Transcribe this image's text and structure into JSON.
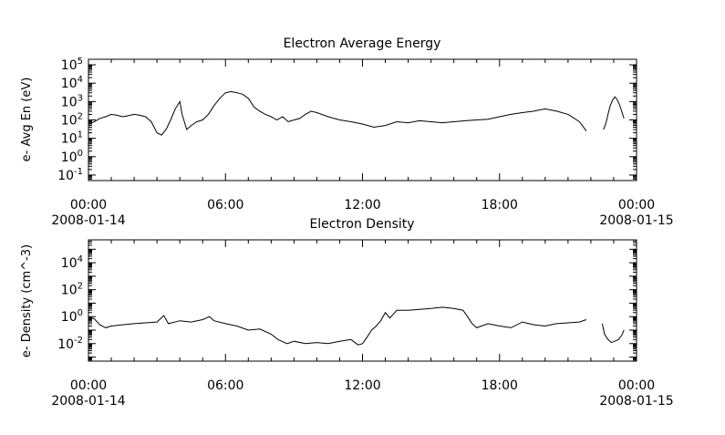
{
  "chart_data": [
    {
      "type": "line",
      "title": "Electron Average Energy",
      "ylabel": "e- Avg En (eV)",
      "yscale": "log",
      "ylim": [
        0.05,
        200000
      ],
      "xlim_hours": [
        0,
        24
      ],
      "y_ticks": [
        {
          "base": "10",
          "exp": "5",
          "value": 100000
        },
        {
          "base": "10",
          "exp": "4",
          "value": 10000
        },
        {
          "base": "10",
          "exp": "3",
          "value": 1000
        },
        {
          "base": "10",
          "exp": "2",
          "value": 100
        },
        {
          "base": "10",
          "exp": "1",
          "value": 10
        },
        {
          "base": "10",
          "exp": "0",
          "value": 1
        },
        {
          "base": "10",
          "exp": "-1",
          "value": 0.1
        }
      ],
      "x_ticks": [
        {
          "time": "00:00",
          "date": "2008-01-14"
        },
        {
          "time": "06:00",
          "date": ""
        },
        {
          "time": "12:00",
          "date": ""
        },
        {
          "time": "18:00",
          "date": ""
        },
        {
          "time": "00:00",
          "date": "2008-01-15"
        }
      ],
      "series": [
        {
          "x": [
            0,
            0.25,
            0.5,
            0.75,
            1.0,
            1.25,
            1.5,
            1.75,
            2.0,
            2.25,
            2.5,
            2.75,
            3.0,
            3.2,
            3.4,
            3.6,
            3.8,
            4.0,
            4.1,
            4.3,
            4.5,
            4.75,
            5.0,
            5.25,
            5.5,
            5.75,
            6.0,
            6.25,
            6.5,
            6.75,
            7.0,
            7.25,
            7.5,
            7.75,
            8.0,
            8.25,
            8.5,
            8.75,
            9.0,
            9.25,
            9.5,
            9.75,
            10.0,
            10.5,
            11.0,
            11.5,
            12.0,
            12.5,
            13.0,
            13.5,
            14.0,
            14.5,
            15.0,
            15.5,
            16.0,
            16.5,
            17.0,
            17.5,
            18.0,
            18.5,
            19.0,
            19.5,
            20.0,
            20.5,
            21.0,
            21.5,
            21.8
          ],
          "y": [
            60,
            80,
            120,
            150,
            200,
            180,
            150,
            170,
            200,
            180,
            150,
            80,
            20,
            15,
            30,
            100,
            400,
            1000,
            200,
            30,
            50,
            80,
            100,
            200,
            600,
            1500,
            3000,
            3500,
            3000,
            2500,
            1500,
            500,
            300,
            200,
            150,
            100,
            150,
            80,
            100,
            120,
            200,
            300,
            250,
            150,
            100,
            80,
            60,
            40,
            50,
            80,
            70,
            90,
            80,
            70,
            80,
            90,
            100,
            110,
            150,
            200,
            250,
            300,
            400,
            300,
            200,
            80,
            25
          ]
        },
        {
          "x": [
            22.55,
            22.65,
            22.75,
            22.85,
            22.95,
            23.05,
            23.15,
            23.25,
            23.35,
            23.45
          ],
          "y": [
            30,
            60,
            200,
            600,
            1200,
            1800,
            1300,
            700,
            300,
            120
          ]
        }
      ]
    },
    {
      "type": "line",
      "title": "Electron Density",
      "ylabel": "e- Density (cm^-3)",
      "yscale": "log",
      "ylim": [
        0.0005,
        500000
      ],
      "xlim_hours": [
        0,
        24
      ],
      "y_ticks": [
        {
          "base": "10",
          "exp": "4",
          "value": 10000
        },
        {
          "base": "10",
          "exp": "2",
          "value": 100
        },
        {
          "base": "10",
          "exp": "0",
          "value": 1
        },
        {
          "base": "10",
          "exp": "-2",
          "value": 0.01
        }
      ],
      "x_ticks": [
        {
          "time": "00:00",
          "date": "2008-01-14"
        },
        {
          "time": "06:00",
          "date": ""
        },
        {
          "time": "12:00",
          "date": ""
        },
        {
          "time": "18:00",
          "date": ""
        },
        {
          "time": "00:00",
          "date": "2008-01-15"
        }
      ],
      "series": [
        {
          "x": [
            0,
            0.25,
            0.5,
            0.75,
            1.0,
            1.5,
            2.0,
            2.5,
            3.0,
            3.3,
            3.5,
            4.0,
            4.5,
            5.0,
            5.3,
            5.5,
            6.0,
            6.5,
            7.0,
            7.5,
            8.0,
            8.3,
            8.7,
            9.0,
            9.5,
            10.0,
            10.5,
            11.0,
            11.5,
            11.8,
            12.0,
            12.2,
            12.4,
            12.6,
            12.8,
            13.0,
            13.2,
            13.5,
            14.0,
            14.5,
            15.0,
            15.5,
            16.0,
            16.4,
            16.6,
            16.8,
            17.0,
            17.5,
            18.0,
            18.5,
            19.0,
            19.5,
            20.0,
            20.5,
            21.0,
            21.5,
            21.8
          ],
          "y": [
            1.0,
            0.7,
            0.25,
            0.15,
            0.2,
            0.25,
            0.3,
            0.35,
            0.4,
            1.2,
            0.3,
            0.5,
            0.4,
            0.6,
            1.0,
            0.5,
            0.3,
            0.2,
            0.1,
            0.12,
            0.05,
            0.02,
            0.01,
            0.015,
            0.01,
            0.012,
            0.01,
            0.015,
            0.02,
            0.008,
            0.01,
            0.03,
            0.1,
            0.2,
            0.5,
            2.0,
            0.8,
            3.0,
            3.0,
            3.5,
            4.0,
            5.0,
            4.0,
            3.0,
            1.0,
            0.3,
            0.15,
            0.3,
            0.2,
            0.15,
            0.4,
            0.25,
            0.2,
            0.3,
            0.35,
            0.4,
            0.6
          ]
        },
        {
          "x": [
            22.5,
            22.6,
            22.75,
            22.9,
            23.05,
            23.2,
            23.35,
            23.45
          ],
          "y": [
            0.3,
            0.05,
            0.02,
            0.012,
            0.015,
            0.02,
            0.04,
            0.1
          ]
        }
      ]
    }
  ]
}
